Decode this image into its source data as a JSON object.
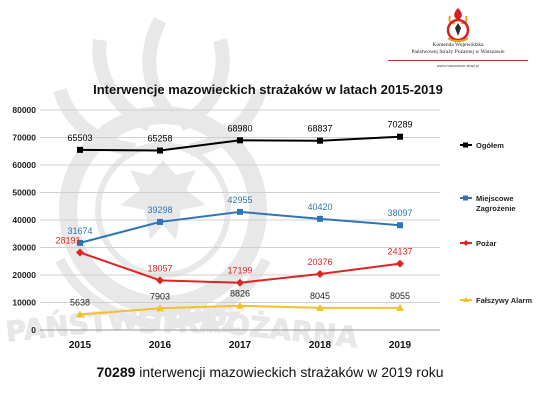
{
  "header": {
    "org_line1": "Komenda Wojewódzka",
    "org_line2": "Państwowej Straży Pożarnej w Warszawie",
    "url": "www.mazowsze.straz.pl"
  },
  "watermark": {
    "text_left": "PAŃSTWOWA",
    "text_mid": "STRAŻ",
    "text_right": "POŻARNA"
  },
  "chart_data": {
    "type": "line",
    "title": "Interwencje mazowieckich strażaków w latach 2015-2019",
    "categories": [
      "2015",
      "2016",
      "2017",
      "2018",
      "2019"
    ],
    "ylim": [
      0,
      80000
    ],
    "yticks": [
      0,
      10000,
      20000,
      30000,
      40000,
      50000,
      60000,
      70000,
      80000
    ],
    "grid": true,
    "legend_position": "right",
    "series": [
      {
        "name": "Ogółem",
        "color": "#000000",
        "marker": "square",
        "values": [
          65503,
          65258,
          68980,
          68837,
          70289
        ]
      },
      {
        "name": "Miejscowe Zagrożenie",
        "color": "#2e75b6",
        "marker": "square",
        "values": [
          31674,
          39298,
          42955,
          40420,
          38097
        ]
      },
      {
        "name": "Pożar",
        "color": "#e02424",
        "marker": "diamond",
        "values": [
          28191,
          18057,
          17199,
          20376,
          24137
        ]
      },
      {
        "name": "Fałszywy Alarm",
        "color": "#f2c12e",
        "marker": "triangle",
        "values": [
          5638,
          7903,
          8826,
          8045,
          8055
        ]
      }
    ]
  },
  "footer": {
    "number": "70289",
    "text": "interwencji mazowieckich strażaków w 2019 roku"
  }
}
